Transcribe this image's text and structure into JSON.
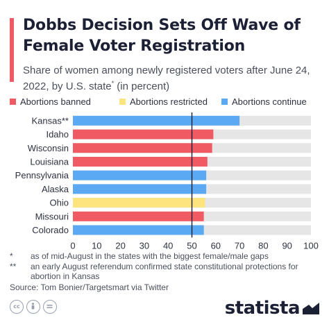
{
  "header": {
    "title": "Dobbs Decision Sets Off Wave of Female Voter Registration",
    "subtitle_main": "Share of women among newly registered voters after June 24, 2022, by U.S. state",
    "subtitle_mark": "*",
    "subtitle_unit": "(in percent)"
  },
  "legend": [
    {
      "label": "Abortions banned",
      "color": "#f05a63"
    },
    {
      "label": "Abortions restricted",
      "color": "#fde47f"
    },
    {
      "label": "Abortions continue",
      "color": "#5aa9f2"
    }
  ],
  "chart_data": {
    "type": "bar",
    "orientation": "horizontal",
    "categories": [
      "Kansas**",
      "Idaho",
      "Wisconsin",
      "Louisiana",
      "Pennsylvania",
      "Alaska",
      "Ohio",
      "Missouri",
      "Colorado"
    ],
    "values": [
      70,
      59,
      58.5,
      56.5,
      56,
      56,
      55.5,
      55,
      55
    ],
    "status": [
      "Abortions continue",
      "Abortions banned",
      "Abortions banned",
      "Abortions banned",
      "Abortions continue",
      "Abortions continue",
      "Abortions restricted",
      "Abortions banned",
      "Abortions continue"
    ],
    "xlim": [
      0,
      100
    ],
    "xticks": [
      0,
      10,
      20,
      30,
      40,
      50,
      60,
      70,
      80,
      90,
      100
    ],
    "reference_line": 50,
    "background_track_color": "#e6e6e6",
    "reference_line_color": "#1c2034"
  },
  "footnotes": [
    {
      "mark": "*",
      "text": "as of mid-August in the states with the biggest female/male gaps"
    },
    {
      "mark": "**",
      "text": "an early August referendum confirmed state constitutional protections for abortion in Kansas"
    }
  ],
  "source": "Source: Tom Bonier/Targetsmart via Twitter",
  "footer": {
    "brand": "statista",
    "icons": [
      "creative-commons-icon",
      "attribution-icon",
      "equals-icon"
    ]
  },
  "colors": {
    "accent": "#f05a63",
    "banned": "#f05a63",
    "restricted": "#fde47f",
    "continue": "#5aa9f2",
    "title": "#1c2034"
  }
}
